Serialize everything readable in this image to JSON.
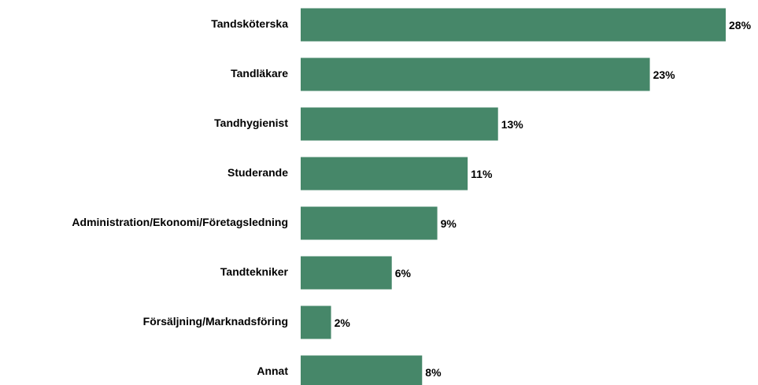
{
  "chart_data": {
    "type": "bar",
    "orientation": "horizontal",
    "categories": [
      "Tandsköterska",
      "Tandläkare",
      "Tandhygienist",
      "Studerande",
      "Administration/Ekonomi/Företagsledning",
      "Tandtekniker",
      "Försäljning/Marknadsföring",
      "Annat"
    ],
    "values": [
      28,
      23,
      13,
      11,
      9,
      6,
      2,
      8
    ],
    "value_labels": [
      "28%",
      "23%",
      "13%",
      "11%",
      "9%",
      "6%",
      "2%",
      "8%"
    ],
    "color": "#468769"
  }
}
